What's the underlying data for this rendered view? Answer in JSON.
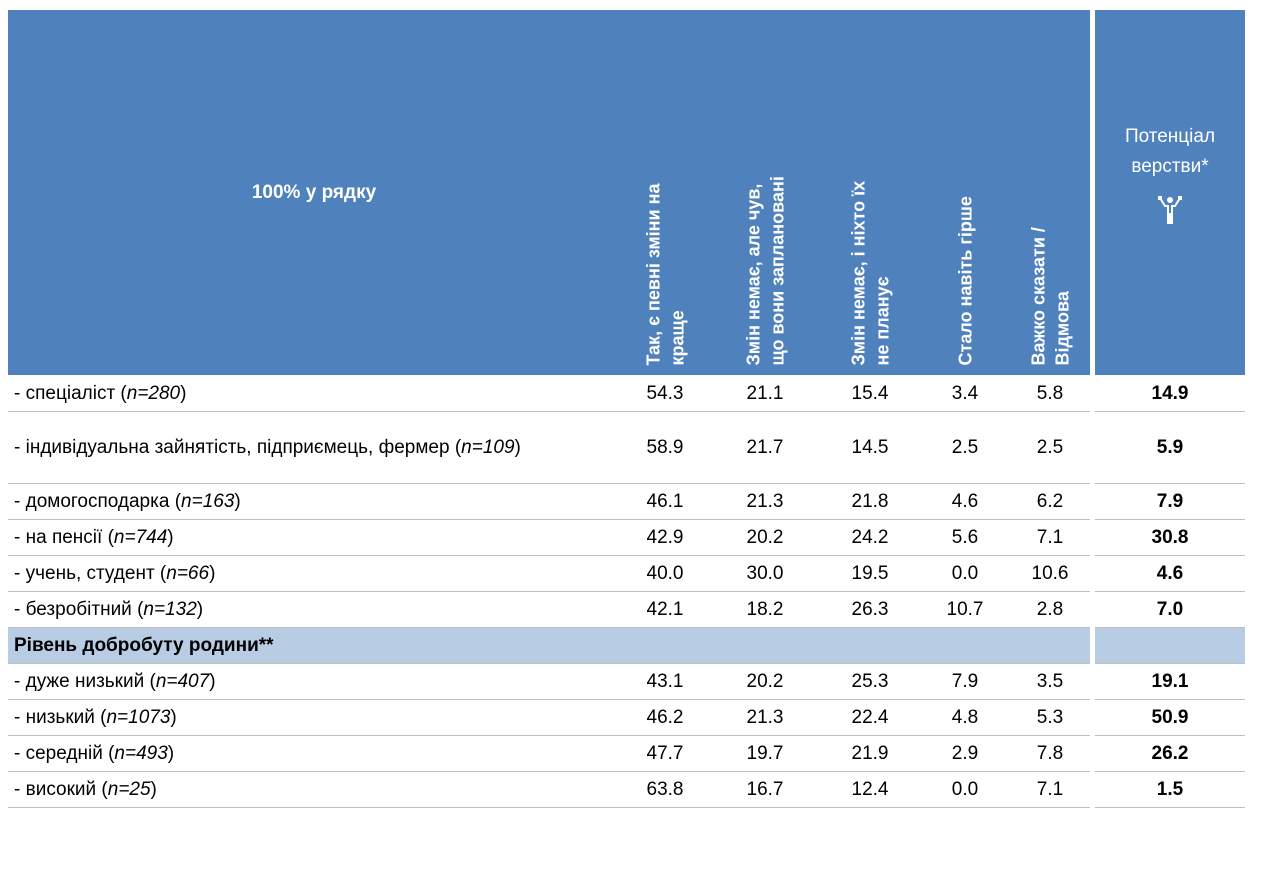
{
  "table": {
    "corner": "100% у рядку",
    "columns": [
      [
        "Так, є певні зміни на",
        "краще"
      ],
      [
        "Змін немає, але чув,",
        "що вони заплановані"
      ],
      [
        "Змін немає, і ніхто їх",
        "не планує"
      ],
      [
        "Стало навіть гірше"
      ],
      [
        "Важко сказати /",
        "Відмова"
      ]
    ],
    "potential": [
      "Потенціал",
      "верстви*"
    ],
    "rows": [
      {
        "label": [
          "- спеціаліст (",
          "n=280",
          ")"
        ],
        "cells": [
          "54.3",
          "21.1",
          "15.4",
          "3.4",
          "5.8"
        ],
        "potential": "14.9"
      },
      {
        "label": [
          "- індивідуальна зайнятість, підприємець, фермер (",
          "n=109",
          ")"
        ],
        "cells": [
          "58.9",
          "21.7",
          "14.5",
          "2.5",
          "2.5"
        ],
        "potential": "5.9"
      },
      {
        "label": [
          "- домогосподарка (",
          "n=163",
          ")"
        ],
        "cells": [
          "46.1",
          "21.3",
          "21.8",
          "4.6",
          "6.2"
        ],
        "potential": "7.9"
      },
      {
        "label": [
          "- на пенсії (",
          "n=744",
          ")"
        ],
        "cells": [
          "42.9",
          "20.2",
          "24.2",
          "5.6",
          "7.1"
        ],
        "potential": "30.8"
      },
      {
        "label": [
          "- учень, студент (",
          "n=66",
          ")"
        ],
        "cells": [
          "40.0",
          "30.0",
          "19.5",
          "0.0",
          "10.6"
        ],
        "potential": "4.6"
      },
      {
        "label": [
          "- безробітний (",
          "n=132",
          ")"
        ],
        "cells": [
          "42.1",
          "18.2",
          "26.3",
          "10.7",
          "2.8"
        ],
        "potential": "7.0"
      },
      {
        "section": "Рівень добробуту родини**"
      },
      {
        "label": [
          "- дуже низький (",
          "n=407",
          ")"
        ],
        "cells": [
          "43.1",
          "20.2",
          "25.3",
          "7.9",
          "3.5"
        ],
        "potential": "19.1"
      },
      {
        "label": [
          "- низький (",
          "n=1073",
          ")"
        ],
        "cells": [
          "46.2",
          "21.3",
          "22.4",
          "4.8",
          "5.3"
        ],
        "potential": "50.9"
      },
      {
        "label": [
          "- середній (",
          "n=493",
          ")"
        ],
        "cells": [
          "47.7",
          "19.7",
          "21.9",
          "2.9",
          "7.8"
        ],
        "potential": "26.2"
      },
      {
        "label": [
          "- високий (",
          "n=25",
          ")"
        ],
        "cells": [
          "63.8",
          "16.7",
          "12.4",
          "0.0",
          "7.1"
        ],
        "potential": "1.5"
      }
    ]
  }
}
